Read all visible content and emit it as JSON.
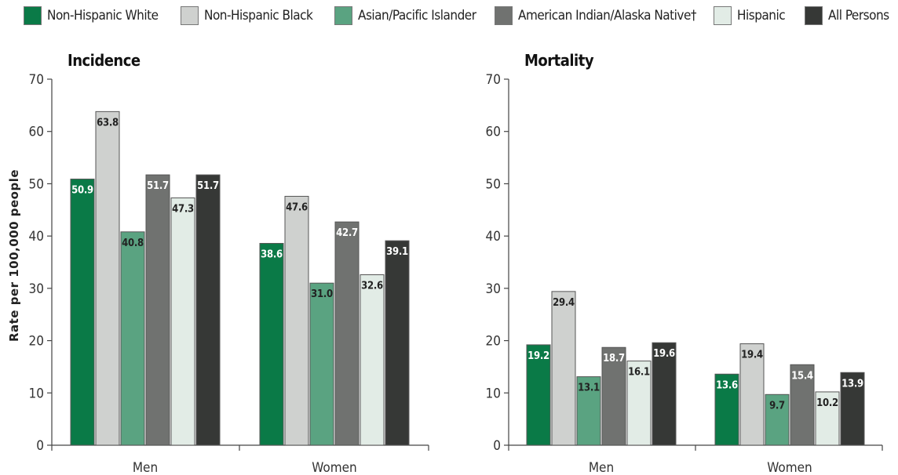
{
  "chart_data": [
    {
      "type": "bar",
      "title": "Incidence",
      "ylabel": "Rate per 100,000 people",
      "xlabel": "",
      "ylim": [
        0,
        70
      ],
      "yticks": [
        0,
        10,
        20,
        30,
        40,
        50,
        60,
        70
      ],
      "categories": [
        "Men",
        "Women"
      ],
      "series": [
        {
          "name": "Non-Hispanic White",
          "values": [
            50.9,
            38.6
          ]
        },
        {
          "name": "Non-Hispanic Black",
          "values": [
            63.8,
            47.6
          ]
        },
        {
          "name": "Asian/Pacific Islander",
          "values": [
            40.8,
            31.0
          ]
        },
        {
          "name": "American Indian/Alaska Native†",
          "values": [
            51.7,
            42.7
          ]
        },
        {
          "name": "Hispanic",
          "values": [
            47.3,
            32.6
          ]
        },
        {
          "name": "All Persons",
          "values": [
            51.7,
            39.1
          ]
        }
      ],
      "data_labels": [
        [
          "50.9",
          "38.6"
        ],
        [
          "63.8",
          "47.6"
        ],
        [
          "40.8",
          "31.0"
        ],
        [
          "51.7",
          "42.7"
        ],
        [
          "47.3",
          "32.6"
        ],
        [
          "51.7",
          "39.1"
        ]
      ],
      "grid": false,
      "legend": "top"
    },
    {
      "type": "bar",
      "title": "Mortality",
      "xlabel": "",
      "ylim": [
        0,
        70
      ],
      "yticks": [
        0,
        10,
        20,
        30,
        40,
        50,
        60,
        70
      ],
      "categories": [
        "Men",
        "Women"
      ],
      "series": [
        {
          "name": "Non-Hispanic White",
          "values": [
            19.2,
            13.6
          ]
        },
        {
          "name": "Non-Hispanic Black",
          "values": [
            29.4,
            19.4
          ]
        },
        {
          "name": "Asian/Pacific Islander",
          "values": [
            13.1,
            9.7
          ]
        },
        {
          "name": "American Indian/Alaska Native†",
          "values": [
            18.7,
            15.4
          ]
        },
        {
          "name": "Hispanic",
          "values": [
            16.1,
            10.2
          ]
        },
        {
          "name": "All Persons",
          "values": [
            19.6,
            13.9
          ]
        }
      ],
      "data_labels": [
        [
          "19.2",
          "13.6"
        ],
        [
          "29.4",
          "19.4"
        ],
        [
          "13.1",
          "9.7"
        ],
        [
          "18.7",
          "15.4"
        ],
        [
          "16.1",
          "10.2"
        ],
        [
          "19.6",
          "13.9"
        ]
      ],
      "grid": false,
      "legend": "top"
    }
  ],
  "legend": {
    "items": [
      {
        "label": "Non-Hispanic White",
        "color": "#0a7a47"
      },
      {
        "label": "Non-Hispanic Black",
        "color": "#cfd1cf"
      },
      {
        "label": "Asian/Pacific Islander",
        "color": "#5aa381"
      },
      {
        "label": "American Indian/Alaska Native†",
        "color": "#707270"
      },
      {
        "label": "Hispanic",
        "color": "#e2ece6"
      },
      {
        "label": "All Persons",
        "color": "#363836"
      }
    ]
  },
  "label_colors": [
    "#ffffff",
    "#222222",
    "#222222",
    "#ffffff",
    "#222222",
    "#ffffff"
  ]
}
